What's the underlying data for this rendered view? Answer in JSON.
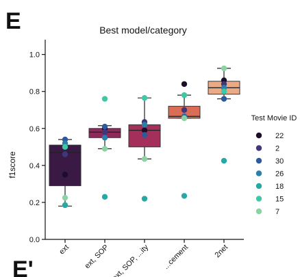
{
  "panel_labels": {
    "top": "E",
    "bottom": "E'"
  },
  "chart_data": {
    "type": "box",
    "title": "Best model/category",
    "xlabel": "",
    "ylabel": "f1score",
    "ylim": [
      0.0,
      1.08
    ],
    "yticks": [
      "0.0",
      "0.2",
      "0.4",
      "0.6",
      "0.8",
      "1.0"
    ],
    "grid": false,
    "categories": [
      "ext",
      "ext, SOP",
      "ext, SOP, ...ity",
      "...cement",
      "2net"
    ],
    "boxes": [
      {
        "category": "ext",
        "min": 0.18,
        "q1": 0.29,
        "median": 0.47,
        "q3": 0.51,
        "max": 0.54,
        "color": "#3a1a45"
      },
      {
        "category": "ext, SOP",
        "min": 0.49,
        "q1": 0.55,
        "median": 0.58,
        "q3": 0.6,
        "max": 0.615,
        "color": "#8f2a5c"
      },
      {
        "category": "ext, SOP, ...ity",
        "min": 0.435,
        "q1": 0.5,
        "median": 0.59,
        "q3": 0.62,
        "max": 0.765,
        "color": "#a42f5a"
      },
      {
        "category": "...cement",
        "min": 0.655,
        "q1": 0.655,
        "median": 0.665,
        "q3": 0.72,
        "max": 0.78,
        "color": "#d96d56"
      },
      {
        "category": "2net",
        "min": 0.76,
        "q1": 0.785,
        "median": 0.82,
        "q3": 0.855,
        "max": 0.925,
        "color": "#ebaa86"
      }
    ],
    "legend": {
      "title": "Test Movie ID",
      "placement": "right",
      "entries": [
        {
          "label": "22",
          "color": "#1d0d2b"
        },
        {
          "label": "2",
          "color": "#3f3779"
        },
        {
          "label": "30",
          "color": "#2e5a9c"
        },
        {
          "label": "26",
          "color": "#2c7fa8"
        },
        {
          "label": "18",
          "color": "#26a8a5"
        },
        {
          "label": "15",
          "color": "#3ec8a6"
        },
        {
          "label": "7",
          "color": "#8bd3a3"
        }
      ]
    },
    "points": [
      {
        "category": "ext",
        "movie": "22",
        "y": 0.35
      },
      {
        "category": "ext",
        "movie": "2",
        "y": 0.46
      },
      {
        "category": "ext",
        "movie": "30",
        "y": 0.54
      },
      {
        "category": "ext",
        "movie": "26",
        "y": 0.52
      },
      {
        "category": "ext",
        "movie": "18",
        "y": 0.185
      },
      {
        "category": "ext",
        "movie": "15",
        "y": 0.5
      },
      {
        "category": "ext",
        "movie": "7",
        "y": 0.225
      },
      {
        "category": "ext, SOP",
        "movie": "22",
        "y": 0.6
      },
      {
        "category": "ext, SOP",
        "movie": "2",
        "y": 0.58
      },
      {
        "category": "ext, SOP",
        "movie": "30",
        "y": 0.61
      },
      {
        "category": "ext, SOP",
        "movie": "26",
        "y": 0.55
      },
      {
        "category": "ext, SOP",
        "movie": "18",
        "y": 0.23
      },
      {
        "category": "ext, SOP",
        "movie": "15",
        "y": 0.76
      },
      {
        "category": "ext, SOP",
        "movie": "7",
        "y": 0.49
      },
      {
        "category": "ext, SOP, ...ity",
        "movie": "22",
        "y": 0.59
      },
      {
        "category": "ext, SOP, ...ity",
        "movie": "2",
        "y": 0.635
      },
      {
        "category": "ext, SOP, ...ity",
        "movie": "30",
        "y": 0.565
      },
      {
        "category": "ext, SOP, ...ity",
        "movie": "26",
        "y": 0.62
      },
      {
        "category": "ext, SOP, ...ity",
        "movie": "18",
        "y": 0.22
      },
      {
        "category": "ext, SOP, ...ity",
        "movie": "15",
        "y": 0.765
      },
      {
        "category": "ext, SOP, ...ity",
        "movie": "7",
        "y": 0.435
      },
      {
        "category": "...cement",
        "movie": "22",
        "y": 0.84
      },
      {
        "category": "...cement",
        "movie": "2",
        "y": 0.7
      },
      {
        "category": "...cement",
        "movie": "30",
        "y": 0.665
      },
      {
        "category": "...cement",
        "movie": "26",
        "y": 0.66
      },
      {
        "category": "...cement",
        "movie": "18",
        "y": 0.235
      },
      {
        "category": "...cement",
        "movie": "15",
        "y": 0.78
      },
      {
        "category": "...cement",
        "movie": "7",
        "y": 0.655
      },
      {
        "category": "2net",
        "movie": "22",
        "y": 0.86
      },
      {
        "category": "2net",
        "movie": "2",
        "y": 0.84
      },
      {
        "category": "2net",
        "movie": "30",
        "y": 0.76
      },
      {
        "category": "2net",
        "movie": "26",
        "y": 0.82
      },
      {
        "category": "2net",
        "movie": "18",
        "y": 0.425
      },
      {
        "category": "2net",
        "movie": "15",
        "y": 0.8
      },
      {
        "category": "2net",
        "movie": "7",
        "y": 0.925
      }
    ]
  }
}
